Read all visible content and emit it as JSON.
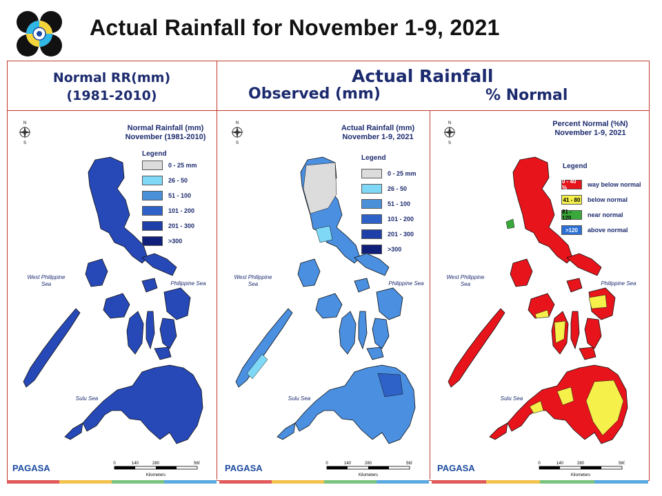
{
  "header": {
    "title": "Actual Rainfall for November 1-9, 2021",
    "left_heading_line1": "Normal RR(mm)",
    "left_heading_line2": "(1981-2010)",
    "main_heading": "Actual Rainfall",
    "observed_heading": "Observed (mm)",
    "percent_heading": "% Normal"
  },
  "panels": [
    {
      "title_line1": "Normal Rainfall (mm)",
      "title_line2": "November (1981-2010)",
      "legend_title": "Legend",
      "legend": [
        {
          "label": "0 - 25 mm",
          "color": "#dcdcdc"
        },
        {
          "label": "26 - 50",
          "color": "#7fd8f5"
        },
        {
          "label": "51 - 100",
          "color": "#4a90d9"
        },
        {
          "label": "101 - 200",
          "color": "#2f62c8"
        },
        {
          "label": "201 - 300",
          "color": "#1f3fa8"
        },
        {
          "label": ">300",
          "color": "#0f1f7a"
        }
      ],
      "map_color": "#2749b8",
      "sea_west": "West Philippine Sea",
      "sea_east": "Philippine Sea",
      "sea_south": "Sulu Sea",
      "scale_labels": [
        "0",
        "140",
        "280",
        "560"
      ],
      "scale_unit": "Kilometers",
      "logo_text": "PAGASA"
    },
    {
      "title_line1": "Actual Rainfall (mm)",
      "title_line2": "November 1-9, 2021",
      "legend_title": "Legend",
      "legend": [
        {
          "label": "0 - 25 mm",
          "color": "#dcdcdc"
        },
        {
          "label": "26 - 50",
          "color": "#7fd8f5"
        },
        {
          "label": "51 - 100",
          "color": "#4a90d9"
        },
        {
          "label": "101 - 200",
          "color": "#2f62c8"
        },
        {
          "label": "201 - 300",
          "color": "#1f3fa8"
        },
        {
          "label": ">300",
          "color": "#0f1f7a"
        }
      ],
      "map_color": "#4a8fe0",
      "sea_west": "West Philippine Sea",
      "sea_east": "Philippine Sea",
      "sea_south": "Sulu Sea",
      "scale_labels": [
        "0",
        "140",
        "280",
        "560"
      ],
      "scale_unit": "Kilometers",
      "logo_text": "PAGASA"
    },
    {
      "title_line1": "Percent Normal (%N)",
      "title_line2": "November 1-9, 2021",
      "legend_title": "Legend",
      "legend": [
        {
          "swatch": "0 - 40 %",
          "label": "way below normal",
          "color": "#e8141b",
          "text_color": "#ffffff"
        },
        {
          "swatch": "41 - 80",
          "label": "below normal",
          "color": "#f5f04a",
          "text_color": "#000000"
        },
        {
          "swatch": "81 - 120",
          "label": "near normal",
          "color": "#3aa83a",
          "text_color": "#000000"
        },
        {
          "swatch": ">120",
          "label": "above normal",
          "color": "#2a6fd6",
          "text_color": "#ffffff"
        }
      ],
      "map_color": "#e8141b",
      "sea_west": "West Philippine Sea",
      "sea_east": "Philippine Sea",
      "sea_south": "Sulu Sea",
      "scale_labels": [
        "0",
        "140",
        "280",
        "560"
      ],
      "scale_unit": "Kilometers",
      "logo_text": "PAGASA"
    }
  ],
  "bottom_bar_colors": [
    "#e05a5a",
    "#f2c14e",
    "#7bc47f",
    "#5aa9e0"
  ]
}
